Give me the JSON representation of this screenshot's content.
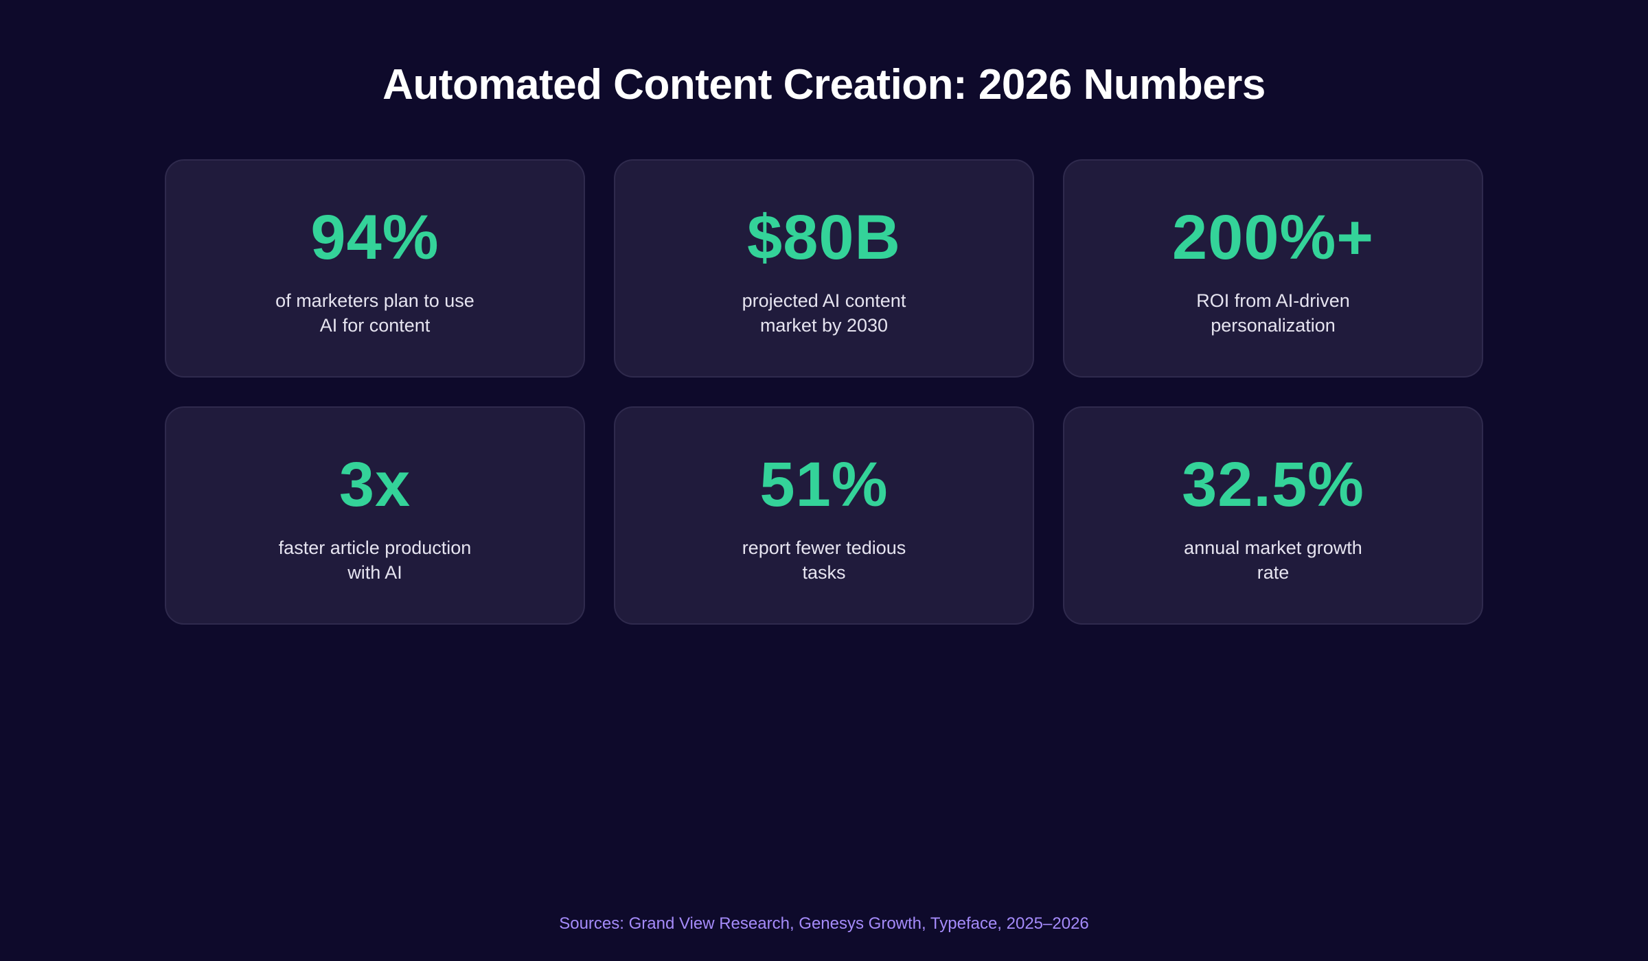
{
  "title": "Automated Content Creation: 2026 Numbers",
  "colors": {
    "background": "#0e0a2b",
    "card": "#201b3c",
    "card_border": "#2f2a4d",
    "accent": "#34d399",
    "source_text": "#a58bfa"
  },
  "stats": [
    {
      "value": "94%",
      "description": "of marketers plan to use AI for content"
    },
    {
      "value": "$80B",
      "description": "projected AI content market by 2030"
    },
    {
      "value": "200%+",
      "description": "ROI from AI-driven personalization"
    },
    {
      "value": "3x",
      "description": "faster article production with AI"
    },
    {
      "value": "51%",
      "description": "report fewer tedious tasks"
    },
    {
      "value": "32.5%",
      "description": "annual market growth rate"
    }
  ],
  "sources": "Sources: Grand View Research, Genesys Growth, Typeface, 2025–2026"
}
